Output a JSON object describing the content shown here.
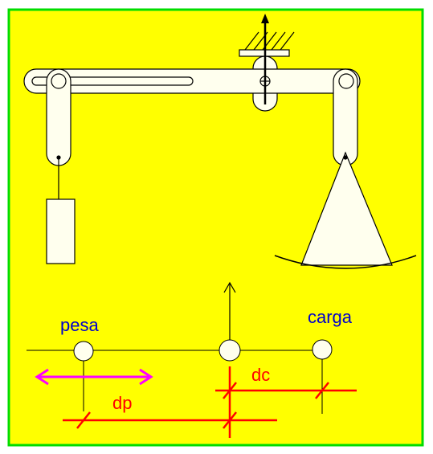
{
  "diagram": {
    "labels": {
      "weight": "pesa",
      "load": "carga",
      "weight_distance": "dp",
      "load_distance": "dc"
    },
    "colors": {
      "background": "#ffff00",
      "border": "#00dd00",
      "parts_fill": "#ffffee",
      "outline": "#000000",
      "label_text": "#0000cc",
      "dimension": "#ff0000",
      "arrow_magenta": "#ff00ff"
    }
  }
}
